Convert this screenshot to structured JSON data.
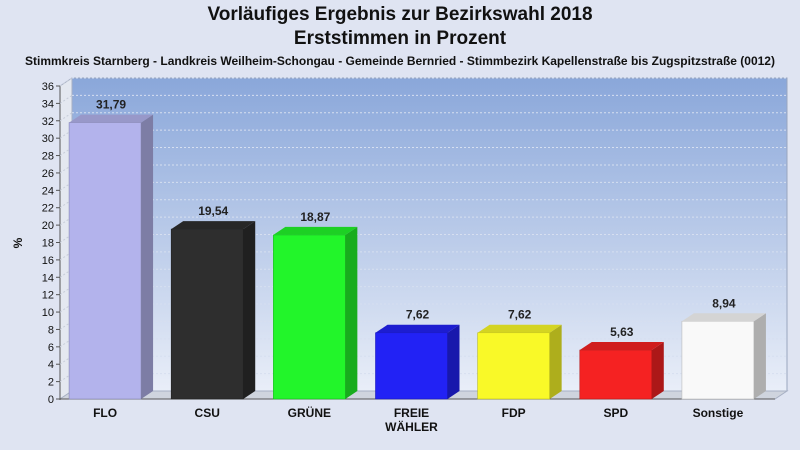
{
  "title_line1": "Vorläufiges Ergebnis zur Bezirkswahl 2018",
  "title_line2": "Erststimmen in Prozent",
  "subtitle": "Stimmkreis Starnberg - Landkreis Weilheim-Schongau - Gemeinde Bernried - Stimmbezirk Kapellenstraße bis Zugspitzstraße (0012)",
  "chart_data": {
    "type": "bar",
    "title": "Vorläufiges Ergebnis zur Bezirkswahl 2018",
    "subtitle": "Erststimmen in Prozent",
    "ylabel": "%",
    "xlabel": "",
    "ylim": [
      0,
      36
    ],
    "ytick_step": 2,
    "grid": true,
    "categories": [
      "FLO",
      "CSU",
      "GRÜNE",
      "FREIE WÄHLER",
      "FDP",
      "SPD",
      "Sonstige"
    ],
    "category_lines": [
      [
        "FLO"
      ],
      [
        "CSU"
      ],
      [
        "GRÜNE"
      ],
      [
        "FREIE",
        "WÄHLER"
      ],
      [
        "FDP"
      ],
      [
        "SPD"
      ],
      [
        "Sonstige"
      ]
    ],
    "values": [
      31.79,
      19.54,
      18.87,
      7.62,
      7.62,
      5.63,
      8.94
    ],
    "value_labels": [
      "31,79",
      "19,54",
      "18,87",
      "7,62",
      "7,62",
      "5,63",
      "8,94"
    ],
    "colors": [
      "#b3b3ec",
      "#2e2e2e",
      "#22f52a",
      "#2222f5",
      "#f9f928",
      "#f52222",
      "#f9f9f9"
    ],
    "plot_background": "#9fb7e0"
  }
}
